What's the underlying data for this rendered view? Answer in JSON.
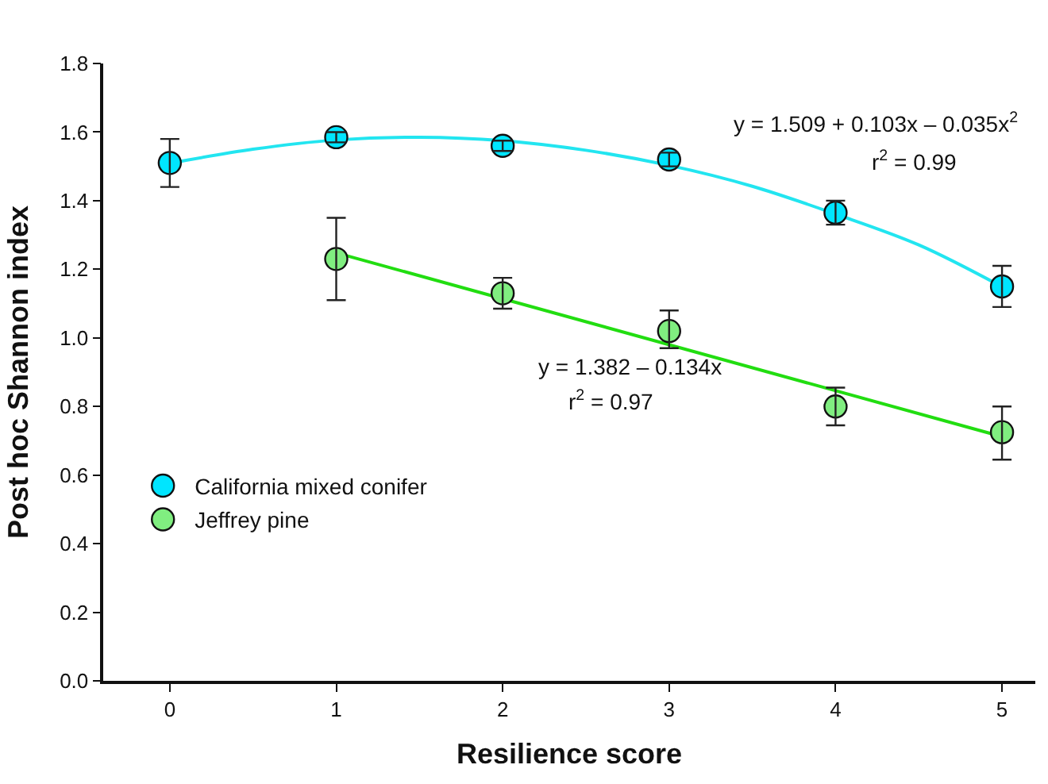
{
  "chart_data": {
    "type": "scatter",
    "xlabel": "Resilience score",
    "ylabel": "Post hoc Shannon index",
    "x": [
      0,
      1,
      2,
      3,
      4,
      5
    ],
    "series": [
      {
        "name": "California mixed conifer",
        "color": "#00e5ff",
        "values": [
          1.51,
          1.585,
          1.56,
          1.52,
          1.365,
          1.15
        ],
        "errors": [
          [
            1.44,
            1.58
          ],
          [
            1.57,
            1.6
          ],
          [
            1.545,
            1.575
          ],
          [
            1.5,
            1.54
          ],
          [
            1.33,
            1.4
          ],
          [
            1.09,
            1.21
          ]
        ]
      },
      {
        "name": "Jeffrey pine",
        "color": "#80ee80",
        "values": [
          null,
          1.23,
          1.13,
          1.02,
          0.8,
          0.725
        ],
        "errors": [
          null,
          [
            1.11,
            1.35
          ],
          [
            1.085,
            1.175
          ],
          [
            0.97,
            1.08
          ],
          [
            0.745,
            0.855
          ],
          [
            0.645,
            0.8
          ]
        ]
      },
      {
        "type": "line",
        "marker": "none",
        "color": "#22e5f0",
        "x": [
          0,
          0.5,
          1,
          1.5,
          2,
          2.5,
          3,
          3.5,
          4,
          4.5,
          5
        ],
        "values": [
          1.509,
          1.55,
          1.577,
          1.585,
          1.575,
          1.547,
          1.503,
          1.442,
          1.361,
          1.271,
          1.149
        ]
      },
      {
        "type": "line",
        "marker": "none",
        "color": "#22dd11",
        "x": [
          1,
          5
        ],
        "values": [
          1.248,
          0.712
        ]
      }
    ],
    "annotations": [
      "y = 1.509 + 0.103x – 0.035x$^{2}$",
      "r$^{2}$ = 0.99",
      "y = 1.382 – 0.134x",
      "r$^{2}$ = 0.97"
    ],
    "xlim": [
      -0.4,
      5.2
    ],
    "ylim": [
      0,
      1.8
    ],
    "xticks": [
      0,
      1,
      2,
      3,
      4,
      5
    ],
    "yticks": [
      {
        "value": 0,
        "label": "0.0"
      },
      {
        "value": 0.2,
        "label": "0.2"
      },
      {
        "value": 0.4,
        "label": "0.4"
      },
      {
        "value": 0.6,
        "label": "0.6"
      },
      {
        "value": 0.8,
        "label": "0.8"
      },
      {
        "value": 1.0,
        "label": "1.0"
      },
      {
        "value": 1.2,
        "label": "1.2"
      },
      {
        "value": 1.4,
        "label": "1.4"
      },
      {
        "value": 1.6,
        "label": "1.6"
      },
      {
        "value": 1.8,
        "label": "1.8"
      }
    ],
    "marker": "circle",
    "legend": "bottom left"
  }
}
